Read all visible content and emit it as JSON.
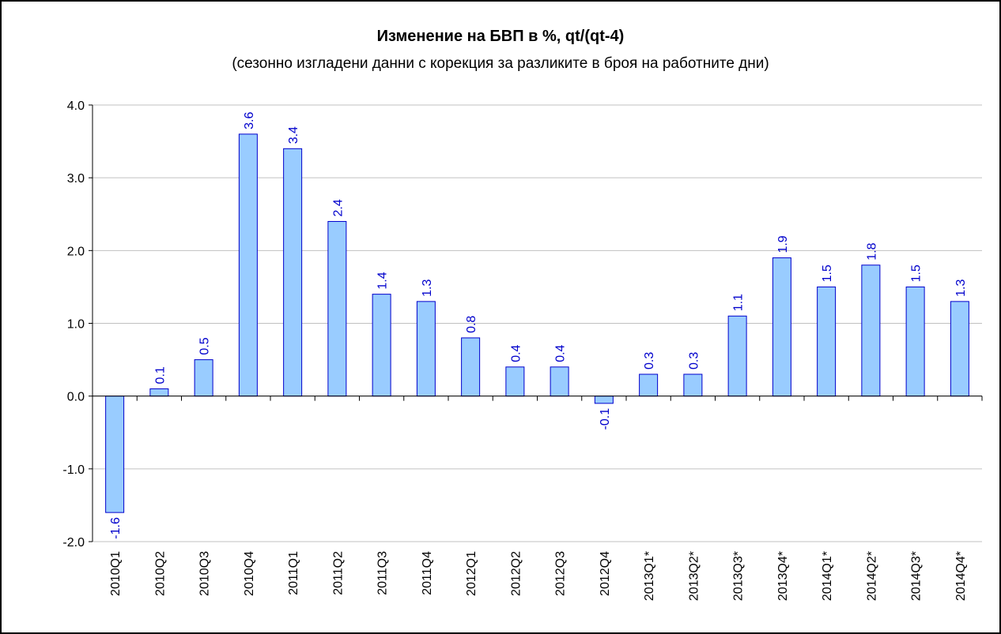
{
  "chart_data": {
    "type": "bar",
    "title": "Изменение на БВП в %, qt/(qt-4)",
    "subtitle": "(сезонно изгладени данни с корекция за разликите в броя на работните дни)",
    "categories": [
      "2010Q1",
      "2010Q2",
      "2010Q3",
      "2010Q4",
      "2011Q1",
      "2011Q2",
      "2011Q3",
      "2011Q4",
      "2012Q1",
      "2012Q2",
      "2012Q3",
      "2012Q4",
      "2013Q1*",
      "2013Q2*",
      "2013Q3*",
      "2013Q4*",
      "2014Q1*",
      "2014Q2*",
      "2014Q3*",
      "2014Q4*"
    ],
    "values": [
      -1.6,
      0.1,
      0.5,
      3.6,
      3.4,
      2.4,
      1.4,
      1.3,
      0.8,
      0.4,
      0.4,
      -0.1,
      0.3,
      0.3,
      1.1,
      1.9,
      1.5,
      1.8,
      1.5,
      1.3
    ],
    "color": "#99ccff",
    "label_color": "#0000cc",
    "ylim": [
      -2,
      4
    ],
    "yticks": [
      {
        "value": -2,
        "label": "-2.0"
      },
      {
        "value": -1,
        "label": "-1.0"
      },
      {
        "value": 0,
        "label": "0.0"
      },
      {
        "value": 1,
        "label": "1.0"
      },
      {
        "value": 2,
        "label": "2.0"
      },
      {
        "value": 3,
        "label": "3.0"
      },
      {
        "value": 4,
        "label": "4.0"
      }
    ],
    "grid": true
  }
}
